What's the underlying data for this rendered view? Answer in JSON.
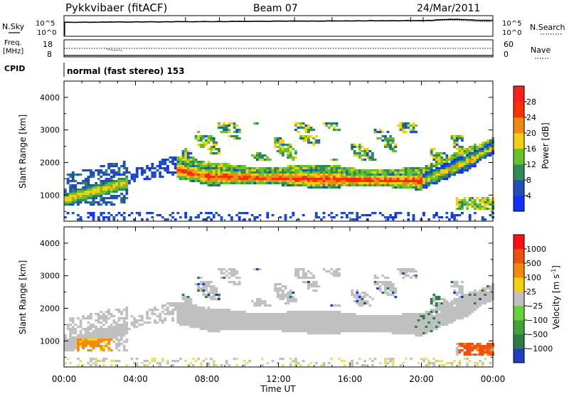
{
  "header": {
    "station": "Pykkvibaer (fitACF)",
    "beam": "Beam 07",
    "date": "24/Mar/2011"
  },
  "status_panels": {
    "nsky_label": "N.Sky",
    "nsearch_label": "N.Search",
    "noise_left_ticks": [
      "10^5",
      "10^0"
    ],
    "noise_right_ticks": [
      "10^5",
      "10^0"
    ],
    "freq_label": "Freq.",
    "freq_unit": "[MHz]",
    "freq_ticks": [
      "18",
      "8"
    ],
    "nave_label": "Nave",
    "nave_ticks": [
      "60",
      "0"
    ],
    "cpid_label": "CPID",
    "cpid_value": "normal (fast stereo) 153"
  },
  "chart_data": [
    {
      "type": "heatmap",
      "name": "power-panel",
      "ylabel": "Slant Range [km]",
      "xlabel": "",
      "x_range": [
        "00:00",
        "24:00"
      ],
      "ylim": [
        200,
        4500
      ],
      "y_ticks": [
        1000,
        2000,
        3000,
        4000
      ],
      "x_ticks": [
        "00:00",
        "04:00",
        "08:00",
        "12:00",
        "16:00",
        "20:00",
        "00:00"
      ],
      "colorbar": {
        "label": "Power [dB]",
        "range": [
          0,
          32
        ],
        "ticks": [
          4,
          8,
          12,
          16,
          20,
          24,
          28
        ],
        "colors": [
          "#1030ff",
          "#1f4fb8",
          "#2e8b57",
          "#66c22a",
          "#f2d010",
          "#f28a10",
          "#ff3000",
          "#ff1f1f"
        ]
      }
    },
    {
      "type": "heatmap",
      "name": "velocity-panel",
      "ylabel": "Slant Range [km]",
      "xlabel": "Time UT",
      "x_range": [
        "00:00",
        "24:00"
      ],
      "ylim": [
        200,
        4500
      ],
      "y_ticks": [
        1000,
        2000,
        3000,
        4000
      ],
      "x_ticks": [
        "00:00",
        "04:00",
        "08:00",
        "12:00",
        "16:00",
        "20:00",
        "00:00"
      ],
      "colorbar": {
        "label": "Velocity [m s",
        "label_sup": "-1",
        "label_end": "]",
        "ticks": [
          "1000",
          "500",
          "100",
          "25",
          "−25",
          "−100",
          "−500",
          "−1000"
        ],
        "colors": [
          "#1f3fbf",
          "#2e7d46",
          "#3ea33a",
          "#66d03a",
          "#c0c0c0",
          "#f2d010",
          "#f28a10",
          "#ee5010",
          "#ff1010"
        ]
      }
    }
  ]
}
